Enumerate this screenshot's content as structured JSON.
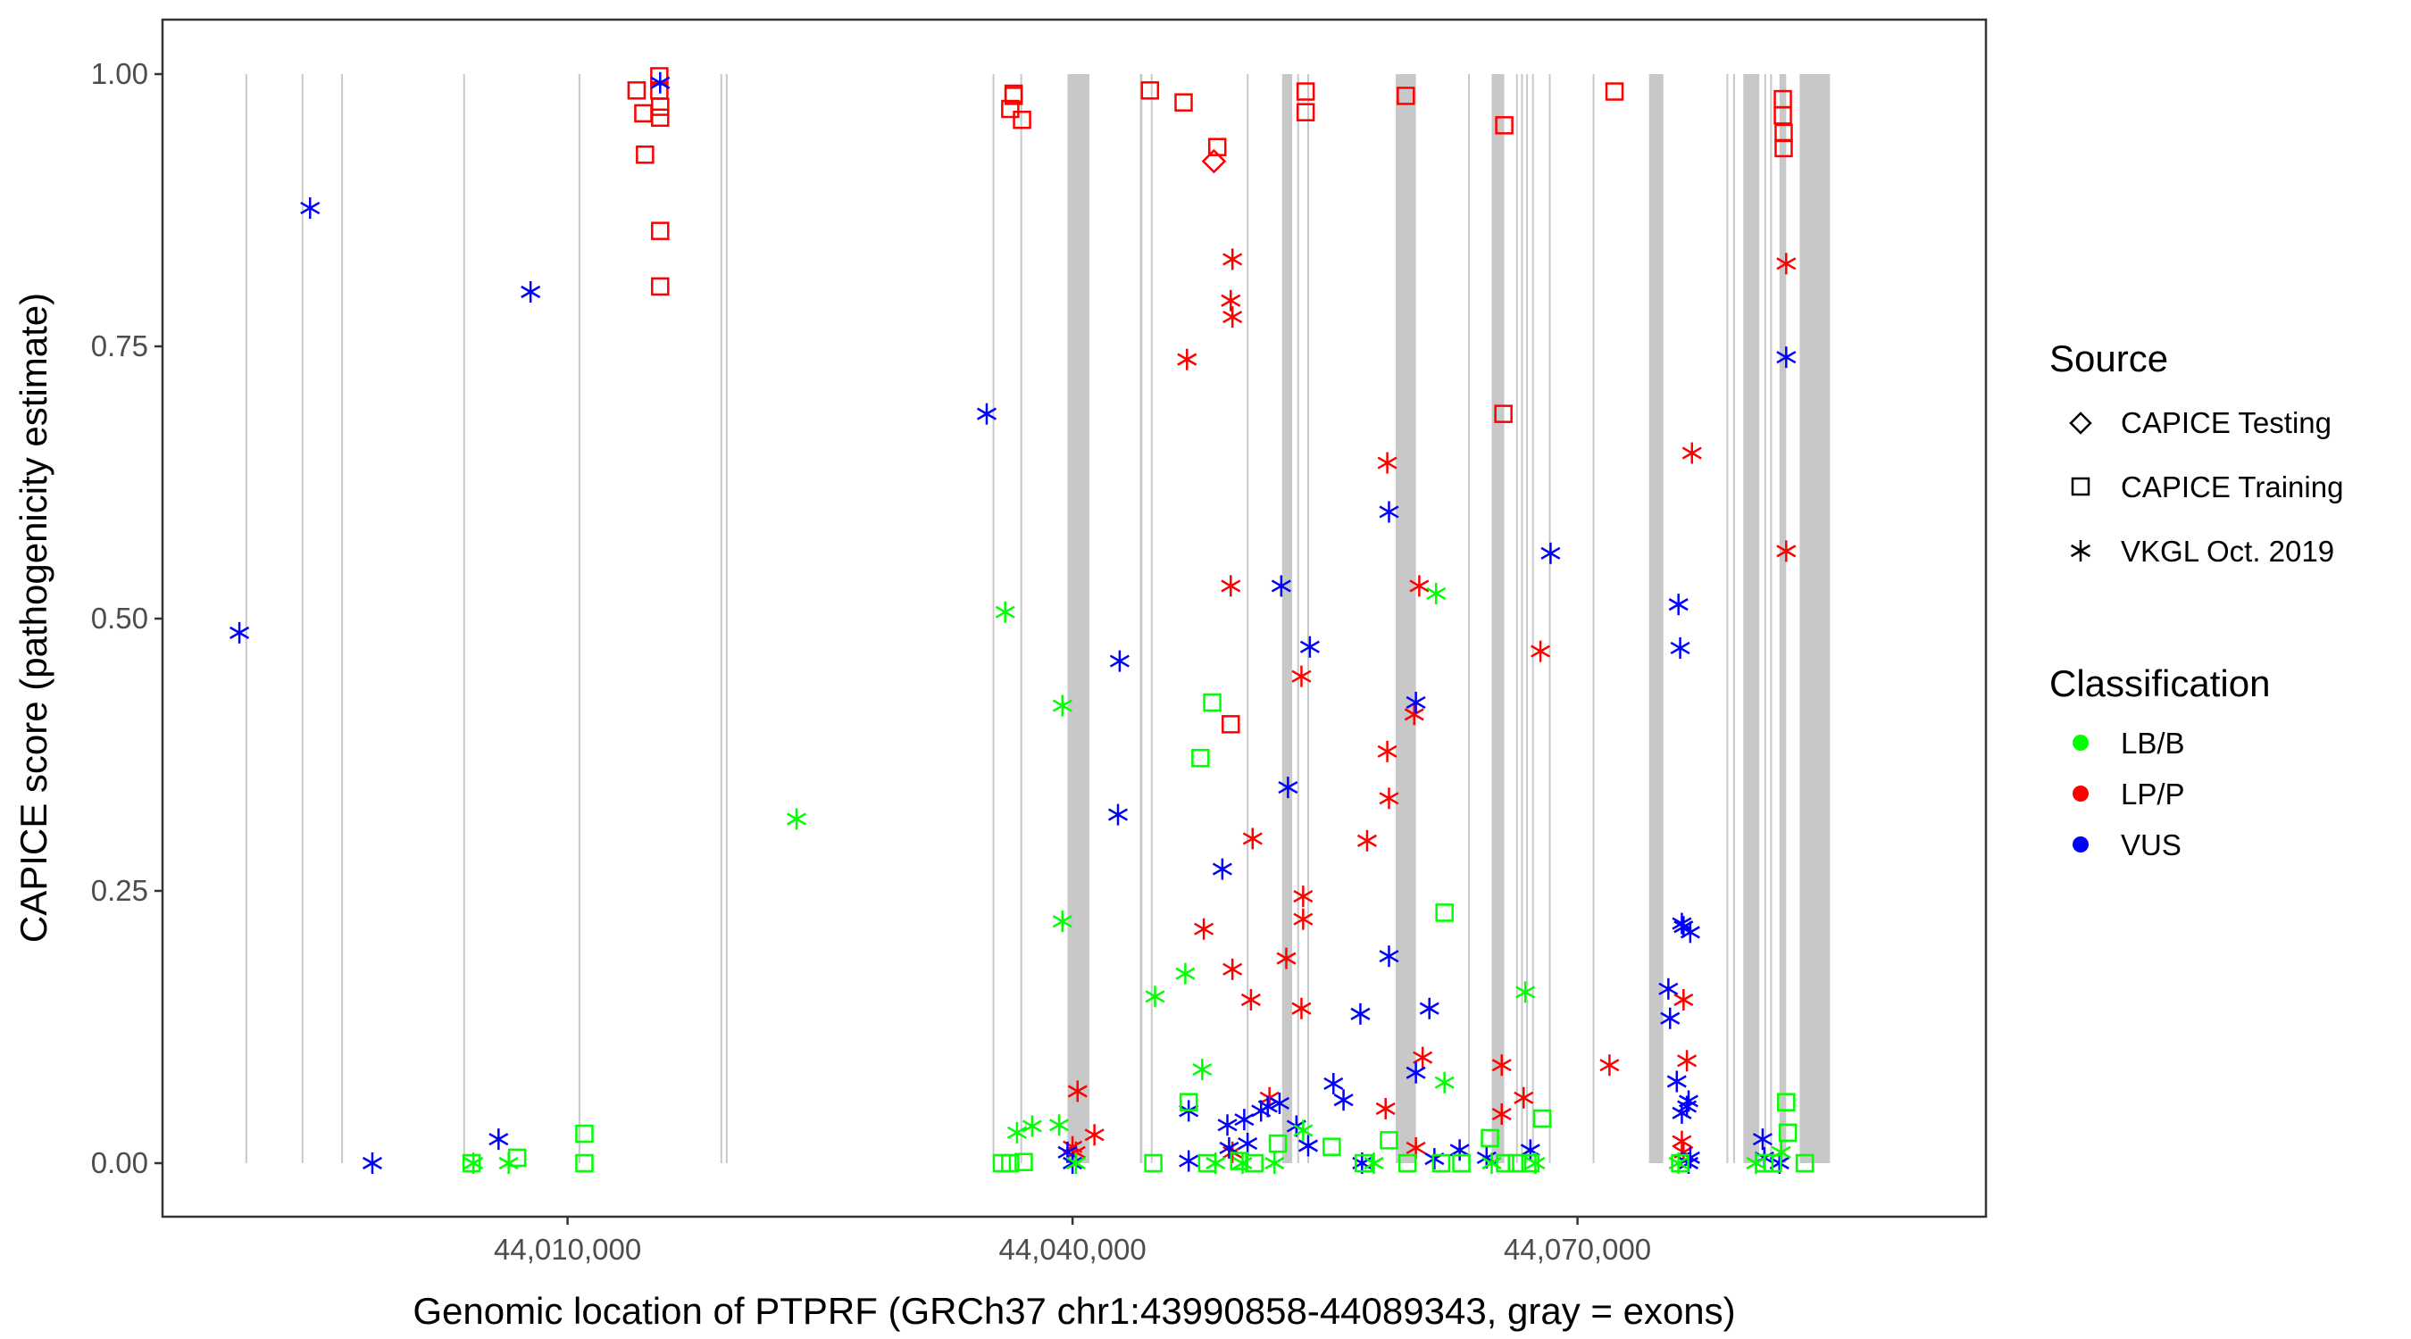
{
  "chart_data": {
    "type": "scatter",
    "title": "",
    "xlabel": "Genomic location of PTPRF (GRCh37 chr1:43990858-44089343, gray = exons)",
    "ylabel": "CAPICE score (pathogenicity estimate)",
    "xlim": [
      43985934,
      44094267
    ],
    "ylim": [
      -0.05,
      1.05
    ],
    "x_ticks": [
      44010000,
      44040000,
      44070000
    ],
    "x_tick_labels": [
      "44,010,000",
      "44,040,000",
      "44,070,000"
    ],
    "y_ticks": [
      0.0,
      0.25,
      0.5,
      0.75,
      1.0
    ],
    "y_tick_labels": [
      "0.00",
      "0.25",
      "0.50",
      "0.75",
      "1.00"
    ],
    "grid": false,
    "legend_position": "right",
    "legends": [
      {
        "title": "Source",
        "entries": [
          {
            "label": "CAPICE Testing",
            "shape": "diamond"
          },
          {
            "label": "CAPICE Training",
            "shape": "square"
          },
          {
            "label": "VKGL Oct. 2019",
            "shape": "asterisk"
          }
        ]
      },
      {
        "title": "Classification",
        "entries": [
          {
            "label": "LB/B",
            "color": "#00FF00"
          },
          {
            "label": "LP/P",
            "color": "#FF0000"
          },
          {
            "label": "VUS",
            "color": "#0000FF"
          }
        ]
      }
    ],
    "exons": [
      [
        43990858,
        43990900
      ],
      [
        43994200,
        43994300
      ],
      [
        43996550,
        43996650
      ],
      [
        44003800,
        44003850
      ],
      [
        44010650,
        44010750
      ],
      [
        44019080,
        44019150
      ],
      [
        44019400,
        44019480
      ],
      [
        44035250,
        44035320
      ],
      [
        44036900,
        44036950
      ],
      [
        44039700,
        44041000
      ],
      [
        44044000,
        44044150
      ],
      [
        44044650,
        44044700
      ],
      [
        44050350,
        44050450
      ],
      [
        44052450,
        44053050
      ],
      [
        44053350,
        44053450
      ],
      [
        44053950,
        44054050
      ],
      [
        44059200,
        44060400
      ],
      [
        44063500,
        44063600
      ],
      [
        44064900,
        44065650
      ],
      [
        44066350,
        44066450
      ],
      [
        44066650,
        44066750
      ],
      [
        44066950,
        44067050
      ],
      [
        44067300,
        44067400
      ],
      [
        44068300,
        44068400
      ],
      [
        44070900,
        44071000
      ],
      [
        44074250,
        44075100
      ],
      [
        44078850,
        44078950
      ],
      [
        44079250,
        44079350
      ],
      [
        44079850,
        44080800
      ],
      [
        44081100,
        44081200
      ],
      [
        44081450,
        44081550
      ],
      [
        44082000,
        44082400
      ],
      [
        44083200,
        44085000
      ]
    ],
    "series": [
      {
        "name": "CAPICE Training / LP/P",
        "source": "CAPICE Training",
        "classification": "LP/P",
        "points": [
          [
            44014100,
            0.985
          ],
          [
            44014500,
            0.964
          ],
          [
            44014600,
            0.926
          ],
          [
            44015450,
            0.998
          ],
          [
            44015450,
            0.985
          ],
          [
            44015500,
            0.97
          ],
          [
            44015500,
            0.96
          ],
          [
            44015500,
            0.856
          ],
          [
            44015500,
            0.805
          ],
          [
            44036300,
            0.968
          ],
          [
            44036500,
            0.98
          ],
          [
            44036500,
            0.982
          ],
          [
            44037000,
            0.958
          ],
          [
            44044600,
            0.985
          ],
          [
            44046600,
            0.974
          ],
          [
            44048600,
            0.933
          ],
          [
            44049400,
            0.403
          ],
          [
            44053850,
            0.984
          ],
          [
            44053850,
            0.965
          ],
          [
            44059800,
            0.98
          ],
          [
            44065650,
            0.953
          ],
          [
            44065600,
            0.688
          ],
          [
            44072200,
            0.984
          ],
          [
            44082200,
            0.977
          ],
          [
            44082200,
            0.962
          ],
          [
            44082250,
            0.946
          ],
          [
            44082250,
            0.932
          ]
        ]
      },
      {
        "name": "CAPICE Testing / LP/P",
        "source": "CAPICE Testing",
        "classification": "LP/P",
        "points": [
          [
            44048400,
            0.92
          ]
        ]
      },
      {
        "name": "VKGL Oct. 2019 / LP/P",
        "source": "VKGL Oct. 2019",
        "classification": "LP/P",
        "points": [
          [
            44040300,
            0.066
          ],
          [
            44040000,
            0.015
          ],
          [
            44040200,
            0.01
          ],
          [
            44041300,
            0.026
          ],
          [
            44046800,
            0.738
          ],
          [
            44047800,
            0.215
          ],
          [
            44049500,
            0.83
          ],
          [
            44049400,
            0.792
          ],
          [
            44049500,
            0.777
          ],
          [
            44049400,
            0.53
          ],
          [
            44049500,
            0.178
          ],
          [
            44050700,
            0.298
          ],
          [
            44050600,
            0.15
          ],
          [
            44049500,
            0.01
          ],
          [
            44051700,
            0.06
          ],
          [
            44052700,
            0.188
          ],
          [
            44053600,
            0.447
          ],
          [
            44053700,
            0.245
          ],
          [
            44053700,
            0.224
          ],
          [
            44053600,
            0.142
          ],
          [
            44057500,
            0.296
          ],
          [
            44058700,
            0.643
          ],
          [
            44058700,
            0.378
          ],
          [
            44058800,
            0.335
          ],
          [
            44058600,
            0.05
          ],
          [
            44060600,
            0.53
          ],
          [
            44060300,
            0.412
          ],
          [
            44060800,
            0.097
          ],
          [
            44060400,
            0.014
          ],
          [
            44065500,
            0.09
          ],
          [
            44065500,
            0.045
          ],
          [
            44066800,
            0.06
          ],
          [
            44067800,
            0.47
          ],
          [
            44071900,
            0.09
          ],
          [
            44076800,
            0.652
          ],
          [
            44076300,
            0.15
          ],
          [
            44076500,
            0.094
          ],
          [
            44076200,
            0.02
          ],
          [
            44076300,
            0.01
          ],
          [
            44082400,
            0.826
          ],
          [
            44082400,
            0.562
          ]
        ]
      },
      {
        "name": "VKGL Oct. 2019 / VUS",
        "source": "VKGL Oct. 2019",
        "classification": "VUS",
        "points": [
          [
            43990500,
            0.487
          ],
          [
            43994700,
            0.877
          ],
          [
            43998400,
            0.0
          ],
          [
            44005900,
            0.022
          ],
          [
            44007800,
            0.8
          ],
          [
            44015500,
            0.992
          ],
          [
            44034900,
            0.688
          ],
          [
            44042800,
            0.461
          ],
          [
            44042700,
            0.32
          ],
          [
            44039700,
            0.01
          ],
          [
            44040000,
            0.0
          ],
          [
            44046900,
            0.048
          ],
          [
            44046900,
            0.002
          ],
          [
            44048900,
            0.27
          ],
          [
            44049200,
            0.035
          ],
          [
            44049300,
            0.014
          ],
          [
            44050200,
            0.04
          ],
          [
            44050400,
            0.018
          ],
          [
            44051200,
            0.048
          ],
          [
            44051600,
            0.052
          ],
          [
            44052300,
            0.055
          ],
          [
            44052800,
            0.345
          ],
          [
            44052400,
            0.53
          ],
          [
            44053300,
            0.034
          ],
          [
            44054000,
            0.016
          ],
          [
            44054100,
            0.474
          ],
          [
            44055500,
            0.073
          ],
          [
            44056100,
            0.058
          ],
          [
            44057200,
            0.0
          ],
          [
            44057100,
            0.137
          ],
          [
            44058800,
            0.598
          ],
          [
            44058800,
            0.19
          ],
          [
            44060400,
            0.423
          ],
          [
            44060400,
            0.083
          ],
          [
            44061200,
            0.142
          ],
          [
            44061500,
            0.004
          ],
          [
            44063000,
            0.012
          ],
          [
            44064600,
            0.005
          ],
          [
            44067200,
            0.012
          ],
          [
            44068400,
            0.56
          ],
          [
            44075400,
            0.16
          ],
          [
            44075500,
            0.133
          ],
          [
            44076000,
            0.513
          ],
          [
            44076100,
            0.473
          ],
          [
            44076200,
            0.22
          ],
          [
            44076300,
            0.217
          ],
          [
            44076700,
            0.212
          ],
          [
            44075900,
            0.075
          ],
          [
            44076200,
            0.046
          ],
          [
            44076600,
            0.057
          ],
          [
            44076500,
            0.052
          ],
          [
            44076700,
            0.005
          ],
          [
            44076600,
            0.0
          ],
          [
            44082400,
            0.74
          ],
          [
            44081000,
            0.022
          ],
          [
            44081100,
            0.005
          ],
          [
            44082000,
            0.0
          ]
        ]
      },
      {
        "name": "VKGL Oct. 2019 / LB/B",
        "source": "VKGL Oct. 2019",
        "classification": "LB/B",
        "points": [
          [
            44004400,
            0.0
          ],
          [
            44006500,
            0.0
          ],
          [
            44023600,
            0.316
          ],
          [
            44036000,
            0.506
          ],
          [
            44036700,
            0.028
          ],
          [
            44037600,
            0.034
          ],
          [
            44039400,
            0.42
          ],
          [
            44039400,
            0.222
          ],
          [
            44039200,
            0.035
          ],
          [
            44040200,
            0.0
          ],
          [
            44044900,
            0.153
          ],
          [
            44046700,
            0.174
          ],
          [
            44047700,
            0.086
          ],
          [
            44048500,
            0.0
          ],
          [
            44050100,
            0.0
          ],
          [
            44052000,
            0.0
          ],
          [
            44053700,
            0.03
          ],
          [
            44057900,
            0.0
          ],
          [
            44061600,
            0.523
          ],
          [
            44062100,
            0.074
          ],
          [
            44064900,
            0.0
          ],
          [
            44066900,
            0.157
          ],
          [
            44067500,
            0.0
          ],
          [
            44076000,
            0.0
          ],
          [
            44080600,
            0.0
          ],
          [
            44082100,
            0.01
          ]
        ]
      },
      {
        "name": "CAPICE Training / LB/B",
        "source": "CAPICE Training",
        "classification": "LB/B",
        "points": [
          [
            44004300,
            0.0
          ],
          [
            44007000,
            0.005
          ],
          [
            44011000,
            0.027
          ],
          [
            44011000,
            0.0
          ],
          [
            44035800,
            0.0
          ],
          [
            44036300,
            0.0
          ],
          [
            44037100,
            0.001
          ],
          [
            44044800,
            0.0
          ],
          [
            44046900,
            0.056
          ],
          [
            44047600,
            0.372
          ],
          [
            44048300,
            0.423
          ],
          [
            44048000,
            0.0
          ],
          [
            44049900,
            0.002
          ],
          [
            44050800,
            0.0
          ],
          [
            44052200,
            0.018
          ],
          [
            44055400,
            0.015
          ],
          [
            44057300,
            0.0
          ],
          [
            44058800,
            0.021
          ],
          [
            44059900,
            0.0
          ],
          [
            44062100,
            0.23
          ],
          [
            44061900,
            0.0
          ],
          [
            44063100,
            0.0
          ],
          [
            44064800,
            0.023
          ],
          [
            44065700,
            0.0
          ],
          [
            44066400,
            0.0
          ],
          [
            44067200,
            0.0
          ],
          [
            44067900,
            0.041
          ],
          [
            44076100,
            0.0
          ],
          [
            44081100,
            0.0
          ],
          [
            44081600,
            0.0
          ],
          [
            44082400,
            0.056
          ],
          [
            44082500,
            0.028
          ],
          [
            44083500,
            0.0
          ]
        ]
      }
    ]
  }
}
